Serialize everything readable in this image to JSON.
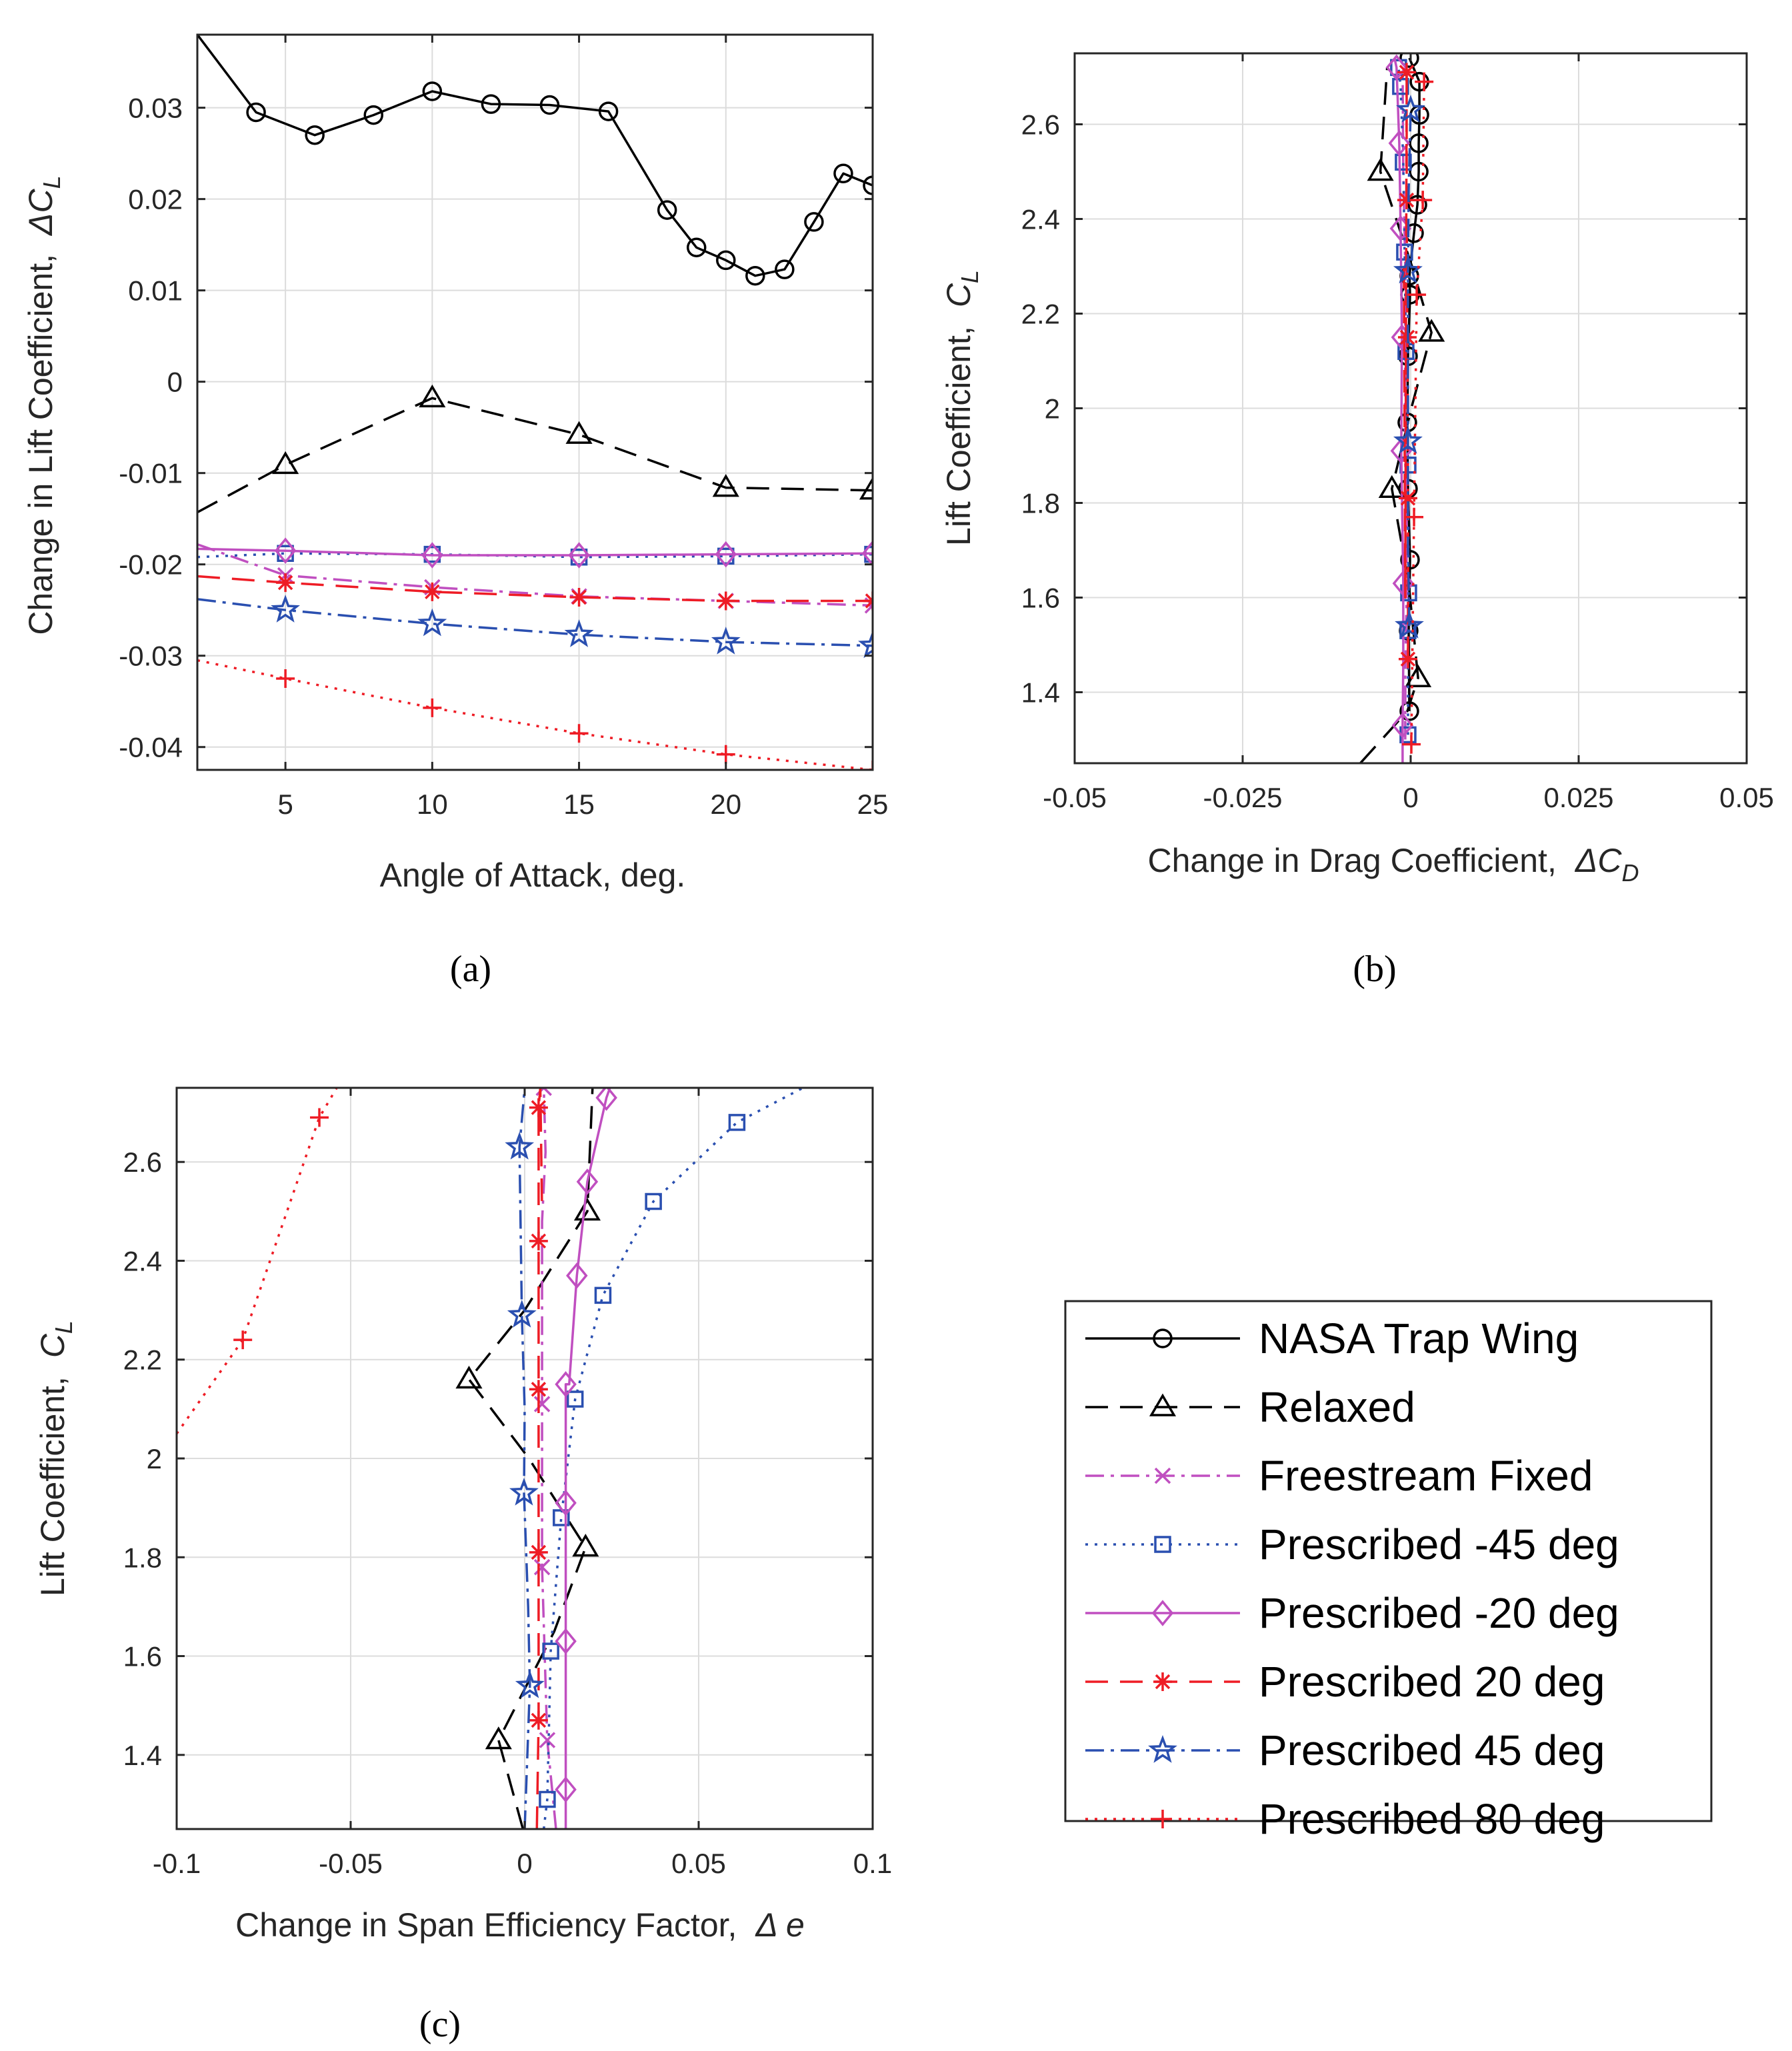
{
  "captions": {
    "a": "(a)",
    "b": "(b)",
    "c": "(c)"
  },
  "legend": {
    "entries": [
      {
        "key": "trap",
        "label": "NASA Trap Wing",
        "color": "#000000",
        "dash": "",
        "marker": "circle"
      },
      {
        "key": "relaxed",
        "label": "Relaxed",
        "color": "#000000",
        "dash": "34 18",
        "marker": "triangle"
      },
      {
        "key": "free",
        "label": "Freestream Fixed",
        "color": "#c04fc0",
        "dash": "28 10 5 10",
        "marker": "x"
      },
      {
        "key": "pm45",
        "label": "Prescribed -45 deg",
        "color": "#2a4fb0",
        "dash": "4 10",
        "marker": "square"
      },
      {
        "key": "pm20",
        "label": "Prescribed -20 deg",
        "color": "#c04fc0",
        "dash": "",
        "marker": "diamond"
      },
      {
        "key": "pp20",
        "label": "Prescribed 20 deg",
        "color": "#ee1c25",
        "dash": "34 18",
        "marker": "asterisk"
      },
      {
        "key": "pp45",
        "label": "Prescribed 45 deg",
        "color": "#2a4fb0",
        "dash": "28 10 5 10",
        "marker": "star"
      },
      {
        "key": "pp80",
        "label": "Prescribed 80 deg",
        "color": "#ee1c25",
        "dash": "4 10",
        "marker": "plus"
      }
    ]
  },
  "chart_data": [
    {
      "id": "a",
      "type": "line",
      "xlabel": "Angle of Attack, deg.",
      "ylabel": "Change in Lift Coefficient,",
      "ylabel_symbol": "ΔC",
      "ylabel_sub": "L",
      "xlim": [
        2,
        25
      ],
      "ylim": [
        -0.0425,
        0.038
      ],
      "xticks": [
        5,
        10,
        15,
        20,
        25
      ],
      "xticklabels": [
        "5",
        "10",
        "15",
        "20",
        "25"
      ],
      "yticks": [
        -0.04,
        -0.03,
        -0.02,
        -0.01,
        0,
        0.01,
        0.02,
        0.03
      ],
      "yticklabels": [
        "-0.04",
        "-0.03",
        "-0.02",
        "-0.01",
        "0",
        "0.01",
        "0.02",
        "0.03"
      ],
      "grid": true,
      "series": [
        {
          "key": "trap",
          "x": [
            2,
            4,
            6,
            8,
            10,
            12,
            14,
            16,
            18,
            19,
            20,
            21,
            22,
            23,
            24,
            25
          ],
          "y": [
            0.038,
            0.0295,
            0.027,
            0.0292,
            0.0318,
            0.0304,
            0.0303,
            0.0296,
            0.0188,
            0.0147,
            0.0133,
            0.0116,
            0.0123,
            0.0175,
            0.0228,
            0.0215
          ],
          "markers": [
            false,
            true,
            true,
            true,
            true,
            true,
            true,
            true,
            true,
            true,
            true,
            true,
            true,
            true,
            true,
            true
          ]
        },
        {
          "key": "relaxed",
          "x": [
            2,
            5,
            10,
            15,
            20,
            25
          ],
          "y": [
            -0.0143,
            -0.0091,
            -0.0018,
            -0.0058,
            -0.0116,
            -0.0119
          ],
          "markers": [
            false,
            true,
            true,
            true,
            true,
            true
          ]
        },
        {
          "key": "free",
          "x": [
            2,
            5,
            10,
            15,
            20,
            25
          ],
          "y": [
            -0.0178,
            -0.0212,
            -0.0225,
            -0.0235,
            -0.024,
            -0.0245
          ],
          "markers": [
            false,
            true,
            true,
            true,
            true,
            true
          ]
        },
        {
          "key": "pm45",
          "x": [
            2,
            5,
            10,
            15,
            20,
            25
          ],
          "y": [
            -0.0192,
            -0.0188,
            -0.0189,
            -0.0192,
            -0.0191,
            -0.0189
          ],
          "markers": [
            false,
            true,
            true,
            true,
            true,
            true
          ]
        },
        {
          "key": "pm20",
          "x": [
            2,
            5,
            10,
            15,
            20,
            25
          ],
          "y": [
            -0.0183,
            -0.0185,
            -0.019,
            -0.019,
            -0.0189,
            -0.0188
          ],
          "markers": [
            false,
            true,
            true,
            true,
            true,
            true
          ]
        },
        {
          "key": "pp20",
          "x": [
            2,
            5,
            10,
            15,
            20,
            25
          ],
          "y": [
            -0.0213,
            -0.022,
            -0.023,
            -0.0236,
            -0.024,
            -0.024
          ],
          "markers": [
            false,
            true,
            true,
            true,
            true,
            true
          ]
        },
        {
          "key": "pp45",
          "x": [
            2,
            5,
            10,
            15,
            20,
            25
          ],
          "y": [
            -0.0238,
            -0.025,
            -0.0265,
            -0.0277,
            -0.0285,
            -0.0289
          ],
          "markers": [
            false,
            true,
            true,
            true,
            true,
            true
          ]
        },
        {
          "key": "pp80",
          "x": [
            2,
            5,
            10,
            15,
            20,
            25
          ],
          "y": [
            -0.0305,
            -0.0325,
            -0.0357,
            -0.0385,
            -0.0408,
            -0.0425
          ],
          "markers": [
            false,
            true,
            true,
            true,
            true,
            true
          ]
        }
      ]
    },
    {
      "id": "b",
      "type": "line",
      "xlabel": "Change in Drag Coefficient,",
      "xlabel_symbol": "ΔC",
      "xlabel_sub": "D",
      "ylabel": "Lift Coefficient,",
      "ylabel_symbol": "C",
      "ylabel_sub": "L",
      "xlim": [
        -0.05,
        0.05
      ],
      "ylim": [
        1.25,
        2.75
      ],
      "xticks": [
        -0.05,
        -0.025,
        0,
        0.025,
        0.05
      ],
      "xticklabels": [
        "-0.05",
        "-0.025",
        "0",
        "0.025",
        "0.05"
      ],
      "yticks": [
        1.4,
        1.6,
        1.8,
        2,
        2.2,
        2.4,
        2.6
      ],
      "yticklabels": [
        "1.4",
        "1.6",
        "1.8",
        "2",
        "2.2",
        "2.4",
        "2.6"
      ],
      "grid": true,
      "series": [
        {
          "key": "trap",
          "x": [
            -0.0002,
            -0.0003,
            -0.0001,
            -0.0004,
            -0.0005,
            -0.0004,
            -0.0001,
            -0.0002,
            0.0005,
            0.001,
            0.0012,
            0.0012,
            0.0013,
            0.0013,
            -0.0002
          ],
          "y": [
            1.36,
            1.53,
            1.68,
            1.83,
            1.97,
            2.11,
            2.24,
            2.28,
            2.37,
            2.43,
            2.5,
            2.56,
            2.62,
            2.69,
            2.74
          ],
          "markers": true
        },
        {
          "key": "relaxed",
          "x": [
            -0.0075,
            -0.0005,
            0.0011,
            -0.0003,
            -0.0028,
            0.0001,
            0.0031,
            0.0002,
            -0.0045,
            -0.0035
          ],
          "y": [
            1.25,
            1.36,
            1.43,
            1.63,
            1.83,
            2.0,
            2.16,
            2.3,
            2.5,
            2.72
          ],
          "markers": [
            false,
            false,
            true,
            false,
            true,
            false,
            true,
            false,
            true,
            false
          ]
        },
        {
          "key": "free",
          "x": [
            -0.0008,
            -0.0008,
            -0.0006,
            -0.0006,
            -0.0009,
            -0.0008,
            -0.0008,
            -0.0011,
            -0.0012
          ],
          "y": [
            1.3,
            1.44,
            1.61,
            1.78,
            1.93,
            2.11,
            2.3,
            2.5,
            2.72
          ],
          "markers": false
        },
        {
          "key": "pm45",
          "x": [
            -0.0004,
            -0.0004,
            -0.0003,
            -0.0004,
            -0.0007,
            -0.0009,
            -0.0011,
            -0.0015,
            -0.0018
          ],
          "y": [
            1.31,
            1.53,
            1.61,
            1.88,
            2.12,
            2.33,
            2.52,
            2.68,
            2.72
          ],
          "markers": true
        },
        {
          "key": "pm20",
          "x": [
            -0.0012,
            -0.0012,
            -0.0011,
            -0.0011,
            -0.0014,
            -0.0013,
            -0.0015,
            -0.0017,
            -0.0021,
            -0.0024
          ],
          "y": [
            1.25,
            1.33,
            1.46,
            1.63,
            1.91,
            2.15,
            2.38,
            2.56,
            2.72,
            2.74
          ],
          "markers": [
            false,
            true,
            false,
            true,
            true,
            true,
            true,
            true,
            true,
            false
          ]
        },
        {
          "key": "pp20",
          "x": [
            -0.0004,
            -0.0004,
            -0.0005,
            -0.0006,
            -0.0006,
            -0.0008,
            -0.001
          ],
          "y": [
            1.47,
            1.81,
            2.15,
            2.44,
            2.71,
            1.6,
            2.3
          ],
          "markers": [
            true,
            true,
            true,
            true,
            true,
            false,
            false
          ]
        },
        {
          "key": "pp45",
          "x": [
            -0.0002,
            -0.0004,
            -0.0004,
            -0.0004,
            -0.0004,
            -0.0003,
            0.0
          ],
          "y": [
            1.54,
            1.71,
            1.93,
            2.12,
            2.29,
            2.46,
            2.63
          ],
          "markers": [
            true,
            false,
            true,
            false,
            true,
            false,
            true
          ]
        },
        {
          "key": "pp80",
          "x": [
            0.0001,
            0.0005,
            0.0009,
            0.0018,
            0.002
          ],
          "y": [
            1.29,
            1.77,
            2.24,
            2.44,
            2.69
          ],
          "markers": true
        }
      ]
    },
    {
      "id": "c",
      "type": "line",
      "xlabel": "Change in Span Efficiency Factor,",
      "xlabel_symbol": "Δ e",
      "ylabel": "Lift Coefficient,",
      "ylabel_symbol": "C",
      "ylabel_sub": "L",
      "xlim": [
        -0.1,
        0.1
      ],
      "ylim": [
        1.25,
        2.75
      ],
      "xticks": [
        -0.1,
        -0.05,
        0,
        0.05,
        0.1
      ],
      "xticklabels": [
        "-0.1",
        "-0.05",
        "0",
        "0.05",
        "0.1"
      ],
      "yticks": [
        1.4,
        1.6,
        1.8,
        2,
        2.2,
        2.4,
        2.6
      ],
      "yticklabels": [
        "1.4",
        "1.6",
        "1.8",
        "2",
        "2.2",
        "2.4",
        "2.6"
      ],
      "grid": true,
      "series": [
        {
          "key": "relaxed",
          "x": [
            -0.0005,
            -0.0075,
            0.0085,
            0.0175,
            0.0012,
            -0.016,
            0.0,
            0.018,
            0.0195
          ],
          "y": [
            1.25,
            1.43,
            1.65,
            1.82,
            2.0,
            2.16,
            2.3,
            2.5,
            2.75
          ],
          "markers": [
            false,
            true,
            false,
            true,
            false,
            true,
            false,
            true,
            false
          ]
        },
        {
          "key": "free",
          "x": [
            0.009,
            0.0065,
            0.005,
            0.005,
            0.005,
            0.005,
            0.006,
            0.0055
          ],
          "y": [
            1.25,
            1.43,
            1.78,
            2.11,
            2.29,
            2.48,
            2.62,
            2.75
          ],
          "markers": [
            false,
            true,
            true,
            true,
            false,
            false,
            false,
            true
          ]
        },
        {
          "key": "pm45",
          "x": [
            0.0055,
            0.0065,
            0.0075,
            0.0105,
            0.0145,
            0.0225,
            0.037,
            0.061,
            0.08
          ],
          "y": [
            1.25,
            1.31,
            1.61,
            1.88,
            2.12,
            2.33,
            2.52,
            2.68,
            2.75
          ],
          "markers": [
            false,
            true,
            true,
            true,
            true,
            true,
            true,
            true,
            false
          ]
        },
        {
          "key": "pm20",
          "x": [
            0.0118,
            0.0118,
            0.0118,
            0.0118,
            0.0118,
            0.0128,
            0.015,
            0.018,
            0.0235,
            0.0245
          ],
          "y": [
            1.25,
            1.33,
            1.63,
            1.91,
            2.15,
            2.15,
            2.37,
            2.56,
            2.73,
            2.75
          ],
          "markers": [
            false,
            true,
            true,
            true,
            true,
            false,
            true,
            true,
            true,
            false
          ]
        },
        {
          "key": "pp20",
          "x": [
            0.0035,
            0.004,
            0.004,
            0.004,
            0.004,
            0.004,
            0.0045,
            0.005
          ],
          "y": [
            1.25,
            1.47,
            1.81,
            2.14,
            2.44,
            2.71,
            2.75,
            2.5
          ],
          "markers": [
            false,
            true,
            true,
            true,
            true,
            true,
            false,
            false
          ]
        },
        {
          "key": "pp45",
          "x": [
            0.0,
            0.0015,
            0.001,
            -0.0002,
            0.0,
            -0.0008,
            -0.0015,
            0.0
          ],
          "y": [
            1.25,
            1.54,
            1.7,
            1.93,
            2.1,
            2.29,
            2.63,
            2.75
          ],
          "markers": [
            false,
            true,
            false,
            true,
            false,
            true,
            true,
            false
          ]
        },
        {
          "key": "pp80",
          "x": [
            -0.1,
            -0.081,
            -0.059,
            -0.054
          ],
          "y": [
            2.05,
            2.24,
            2.69,
            2.75
          ],
          "markers": [
            false,
            true,
            true,
            false
          ]
        }
      ]
    }
  ]
}
